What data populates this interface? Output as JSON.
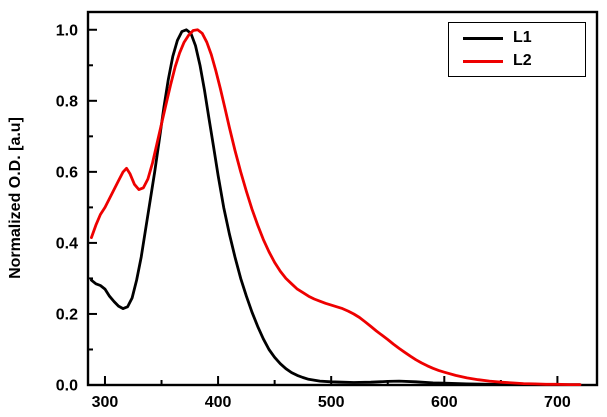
{
  "chart_data": {
    "type": "line",
    "title": "",
    "xlabel": "",
    "ylabel": "Normalized O.D. [a.u]",
    "xlim": [
      285,
      735
    ],
    "ylim": [
      0,
      1.05
    ],
    "xtick_values": [
      300,
      400,
      500,
      600,
      700
    ],
    "xtick_labels": [
      "300",
      "400",
      "500",
      "600",
      "700"
    ],
    "xticks_minor": [
      350,
      450,
      550,
      650
    ],
    "ytick_values": [
      0.0,
      0.2,
      0.4,
      0.6,
      0.8,
      1.0
    ],
    "ytick_labels": [
      "0.0",
      "0.2",
      "0.4",
      "0.6",
      "0.8",
      "1.0"
    ],
    "yticks_minor": [
      0.1,
      0.3,
      0.5,
      0.7,
      0.9
    ],
    "grid": false,
    "legend_position": "top-right",
    "axis_color": "#000000",
    "series": [
      {
        "name": "L1",
        "color": "#000000",
        "points": [
          [
            288,
            0.295
          ],
          [
            292,
            0.285
          ],
          [
            296,
            0.28
          ],
          [
            300,
            0.27
          ],
          [
            304,
            0.25
          ],
          [
            308,
            0.235
          ],
          [
            312,
            0.222
          ],
          [
            316,
            0.215
          ],
          [
            320,
            0.22
          ],
          [
            324,
            0.245
          ],
          [
            328,
            0.295
          ],
          [
            332,
            0.36
          ],
          [
            336,
            0.44
          ],
          [
            340,
            0.52
          ],
          [
            344,
            0.6
          ],
          [
            348,
            0.69
          ],
          [
            352,
            0.78
          ],
          [
            356,
            0.86
          ],
          [
            360,
            0.925
          ],
          [
            364,
            0.97
          ],
          [
            368,
            0.995
          ],
          [
            372,
            1.0
          ],
          [
            376,
            0.99
          ],
          [
            380,
            0.955
          ],
          [
            384,
            0.9
          ],
          [
            388,
            0.83
          ],
          [
            392,
            0.75
          ],
          [
            396,
            0.67
          ],
          [
            400,
            0.59
          ],
          [
            405,
            0.5
          ],
          [
            410,
            0.425
          ],
          [
            415,
            0.36
          ],
          [
            420,
            0.3
          ],
          [
            425,
            0.25
          ],
          [
            430,
            0.205
          ],
          [
            435,
            0.165
          ],
          [
            440,
            0.13
          ],
          [
            445,
            0.1
          ],
          [
            450,
            0.078
          ],
          [
            455,
            0.06
          ],
          [
            460,
            0.046
          ],
          [
            465,
            0.035
          ],
          [
            470,
            0.027
          ],
          [
            475,
            0.021
          ],
          [
            480,
            0.016
          ],
          [
            490,
            0.011
          ],
          [
            500,
            0.009
          ],
          [
            510,
            0.008
          ],
          [
            520,
            0.007
          ],
          [
            535,
            0.008
          ],
          [
            550,
            0.01
          ],
          [
            560,
            0.011
          ],
          [
            575,
            0.009
          ],
          [
            590,
            0.006
          ],
          [
            600,
            0.005
          ],
          [
            620,
            0.003
          ],
          [
            640,
            0.002
          ],
          [
            660,
            0.002
          ],
          [
            680,
            0.001
          ],
          [
            700,
            0.001
          ],
          [
            720,
            0.001
          ]
        ]
      },
      {
        "name": "L2",
        "color": "#ee0000",
        "points": [
          [
            288,
            0.415
          ],
          [
            292,
            0.45
          ],
          [
            296,
            0.48
          ],
          [
            300,
            0.5
          ],
          [
            304,
            0.525
          ],
          [
            308,
            0.55
          ],
          [
            312,
            0.575
          ],
          [
            316,
            0.6
          ],
          [
            319,
            0.61
          ],
          [
            322,
            0.595
          ],
          [
            326,
            0.565
          ],
          [
            330,
            0.55
          ],
          [
            334,
            0.555
          ],
          [
            338,
            0.58
          ],
          [
            342,
            0.625
          ],
          [
            346,
            0.68
          ],
          [
            350,
            0.735
          ],
          [
            354,
            0.79
          ],
          [
            358,
            0.845
          ],
          [
            362,
            0.895
          ],
          [
            366,
            0.935
          ],
          [
            370,
            0.965
          ],
          [
            374,
            0.985
          ],
          [
            378,
            0.998
          ],
          [
            382,
            1.0
          ],
          [
            386,
            0.99
          ],
          [
            390,
            0.965
          ],
          [
            394,
            0.93
          ],
          [
            398,
            0.885
          ],
          [
            402,
            0.835
          ],
          [
            406,
            0.78
          ],
          [
            410,
            0.725
          ],
          [
            415,
            0.66
          ],
          [
            420,
            0.6
          ],
          [
            425,
            0.545
          ],
          [
            430,
            0.495
          ],
          [
            435,
            0.45
          ],
          [
            440,
            0.41
          ],
          [
            445,
            0.375
          ],
          [
            450,
            0.345
          ],
          [
            455,
            0.32
          ],
          [
            460,
            0.3
          ],
          [
            465,
            0.285
          ],
          [
            470,
            0.27
          ],
          [
            475,
            0.26
          ],
          [
            480,
            0.25
          ],
          [
            485,
            0.242
          ],
          [
            490,
            0.236
          ],
          [
            495,
            0.23
          ],
          [
            500,
            0.225
          ],
          [
            505,
            0.22
          ],
          [
            510,
            0.215
          ],
          [
            515,
            0.208
          ],
          [
            520,
            0.2
          ],
          [
            525,
            0.19
          ],
          [
            530,
            0.178
          ],
          [
            535,
            0.165
          ],
          [
            540,
            0.152
          ],
          [
            545,
            0.14
          ],
          [
            550,
            0.128
          ],
          [
            555,
            0.115
          ],
          [
            560,
            0.103
          ],
          [
            565,
            0.092
          ],
          [
            570,
            0.081
          ],
          [
            575,
            0.071
          ],
          [
            580,
            0.062
          ],
          [
            585,
            0.054
          ],
          [
            590,
            0.047
          ],
          [
            595,
            0.041
          ],
          [
            600,
            0.036
          ],
          [
            610,
            0.027
          ],
          [
            620,
            0.02
          ],
          [
            630,
            0.015
          ],
          [
            640,
            0.011
          ],
          [
            650,
            0.008
          ],
          [
            660,
            0.006
          ],
          [
            670,
            0.004
          ],
          [
            680,
            0.003
          ],
          [
            690,
            0.002
          ],
          [
            700,
            0.002
          ],
          [
            710,
            0.001
          ],
          [
            720,
            0.001
          ]
        ]
      }
    ]
  }
}
